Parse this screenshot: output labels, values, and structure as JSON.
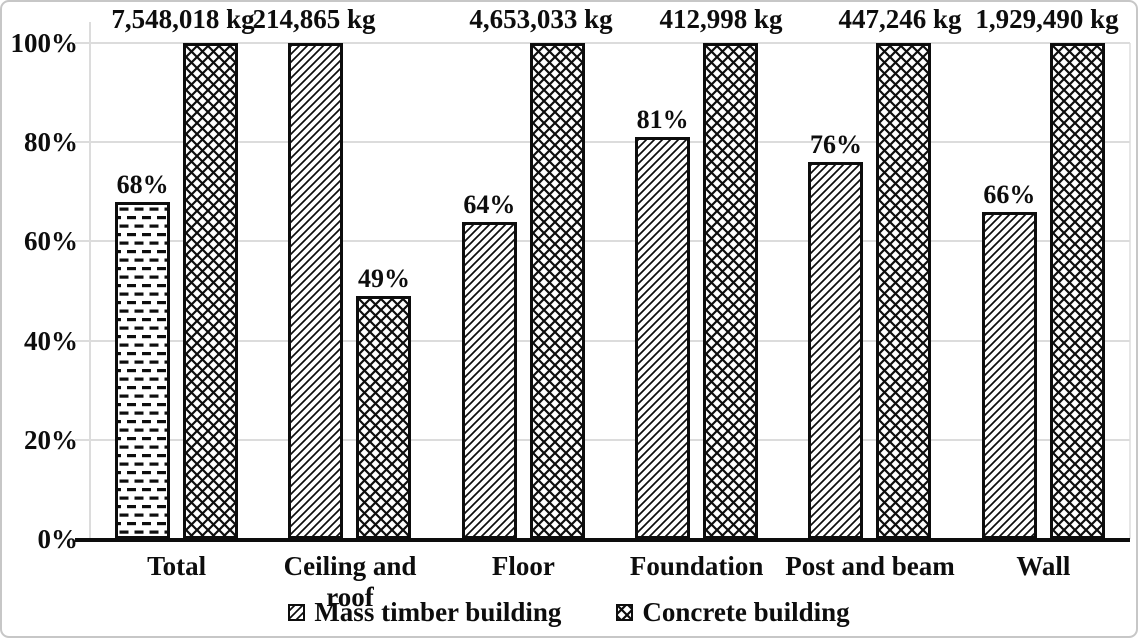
{
  "chart_data": {
    "type": "bar",
    "title": "",
    "xlabel": "",
    "ylabel": "",
    "ylim": [
      0,
      100
    ],
    "grid": "horizontal",
    "legend_position": "bottom",
    "categories": [
      "Total",
      "Ceiling and roof",
      "Floor",
      "Foundation",
      "Post and beam",
      "Wall"
    ],
    "series": [
      {
        "name": "Mass timber building",
        "values": [
          68,
          100,
          64,
          81,
          76,
          66
        ],
        "bar_labels": [
          "68%",
          "",
          "64%",
          "81%",
          "76%",
          "66%"
        ],
        "bar_patterns": [
          "dashed",
          "diagonal",
          "diagonal",
          "diagonal",
          "diagonal",
          "diagonal"
        ],
        "legend_pattern": "diagonal"
      },
      {
        "name": "Concrete building",
        "values": [
          100,
          49,
          100,
          100,
          100,
          100
        ],
        "bar_labels": [
          "",
          "49%",
          "",
          "",
          "",
          ""
        ],
        "bar_patterns": [
          "crosshatch",
          "crosshatch",
          "crosshatch",
          "crosshatch",
          "crosshatch",
          "crosshatch"
        ],
        "legend_pattern": "crosshatch"
      }
    ],
    "group_mass_labels": [
      "7,548,018 kg",
      "214,865 kg",
      "4,653,033 kg",
      "412,998 kg",
      "447,246 kg",
      "1,929,490 kg"
    ],
    "y_ticks": [
      {
        "label": "0%",
        "value": 0
      },
      {
        "label": "20%",
        "value": 20
      },
      {
        "label": "40%",
        "value": 40
      },
      {
        "label": "60%",
        "value": 60
      },
      {
        "label": "80%",
        "value": 80
      },
      {
        "label": "100%",
        "value": 100
      }
    ]
  },
  "colors": {
    "text": "#0d0d0d",
    "bar_outline": "#0d0d0d",
    "pattern_ink": "#0d0d0d",
    "gridline": "#dcdcdc",
    "frame": "#c7c7c7",
    "background": "#ffffff"
  }
}
